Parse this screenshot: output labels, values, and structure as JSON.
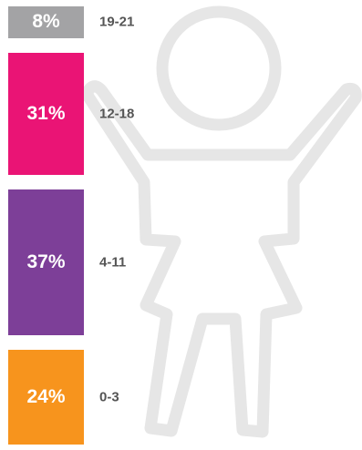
{
  "chart_data": {
    "type": "bar",
    "orientation": "stacked-vertical",
    "categories": [
      "19-21",
      "12-18",
      "4-11",
      "0-3"
    ],
    "values": [
      8,
      31,
      37,
      24
    ],
    "value_labels": [
      "8%",
      "31%",
      "37%",
      "24%"
    ],
    "colors": [
      "#a3a3a5",
      "#ea1475",
      "#7d3f98",
      "#f7941d"
    ],
    "title": "",
    "xlabel": "",
    "ylabel": ""
  },
  "figure": {
    "icon": "child-outline-icon",
    "color": "#e6e6e6"
  }
}
